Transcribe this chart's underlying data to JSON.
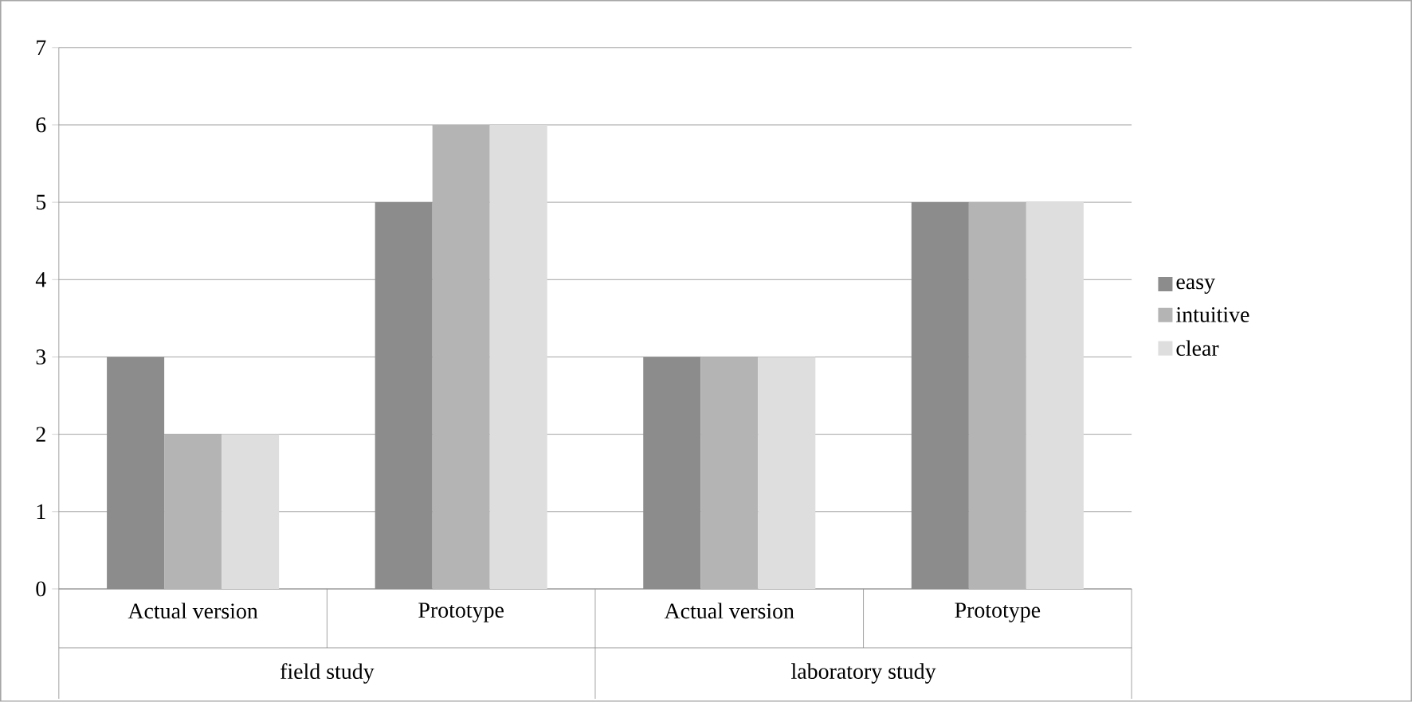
{
  "chart_data": {
    "type": "bar",
    "categories": [
      "Actual version",
      "Prototype",
      "Actual version",
      "Prototype"
    ],
    "series": [
      {
        "name": "easy",
        "color": "#8c8c8c",
        "values": [
          3,
          5,
          3,
          5
        ]
      },
      {
        "name": "intuitive",
        "color": "#b4b4b4",
        "values": [
          2,
          6,
          3,
          5
        ]
      },
      {
        "name": "clear",
        "color": "#dedede",
        "values": [
          2,
          6,
          3,
          5
        ]
      }
    ],
    "ylim": [
      0,
      7
    ],
    "yticks": [
      0,
      1,
      2,
      3,
      4,
      5,
      6,
      7
    ],
    "grid": "y",
    "legend": "right",
    "annotations": [
      "field study",
      "laboratory study"
    ]
  }
}
